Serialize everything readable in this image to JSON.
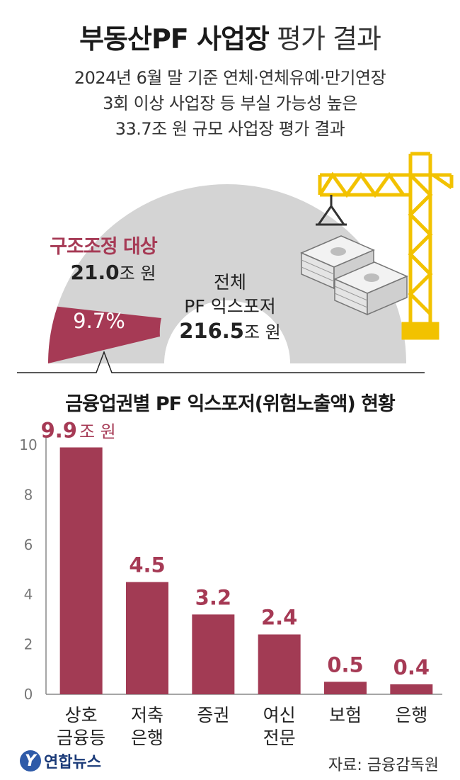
{
  "header": {
    "title_bold": "부동산PF 사업장",
    "title_light": "평가 결과",
    "subtitle_lines": [
      "2024년 6월 말 기준 연체·연체유예·만기연장",
      "3회 이상 사업장 등 부실 가능성 높은",
      "33.7조 원 규모 사업장 평가 결과"
    ]
  },
  "summary": {
    "restructuring_label": "구조조정 대상",
    "restructuring_value": "21.0",
    "restructuring_unit": "조 원",
    "restructuring_share": "9.7%",
    "restructuring_share_value": 9.7,
    "total_line1": "전체",
    "total_line2": "PF 익스포저",
    "total_value": "216.5",
    "total_unit": "조 원"
  },
  "colors": {
    "accent": "#a63a55",
    "bar": "#a23b54",
    "arc_gray": "#d4d4d4",
    "crane_yellow": "#f2c200"
  },
  "chart_data": {
    "type": "bar",
    "title": "금융업권별 PF 익스포저(위험노출액) 현황",
    "categories": [
      [
        "상호",
        "금융등"
      ],
      [
        "저축",
        "은행"
      ],
      [
        "증권"
      ],
      [
        "여신",
        "전문"
      ],
      [
        "보험"
      ],
      [
        "은행"
      ]
    ],
    "values": [
      9.9,
      4.5,
      3.2,
      2.4,
      0.5,
      0.4
    ],
    "value_labels": [
      "9.9",
      "4.5",
      "3.2",
      "2.4",
      "0.5",
      "0.4"
    ],
    "first_label_unit": "조 원",
    "yticks": [
      0,
      2,
      4,
      6,
      8,
      10
    ],
    "ylim": [
      0,
      10.5
    ],
    "grid": false
  },
  "footer": {
    "logo_text": "연합뉴스",
    "logo_mark": "Y",
    "source": "자료: 금융감독원"
  }
}
